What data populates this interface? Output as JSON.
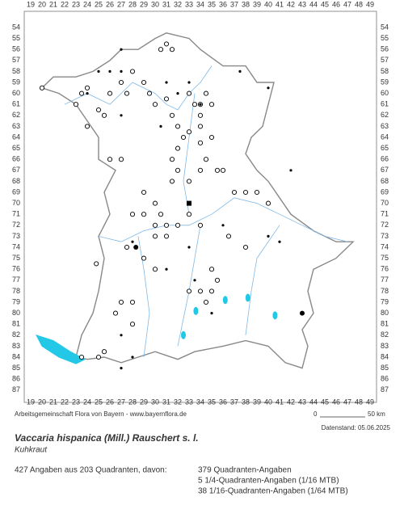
{
  "grid": {
    "columns": [
      19,
      20,
      21,
      22,
      23,
      24,
      25,
      26,
      27,
      28,
      29,
      30,
      31,
      32,
      33,
      34,
      35,
      36,
      37,
      38,
      39,
      40,
      41,
      42,
      43,
      44,
      45,
      46,
      47,
      48,
      49
    ],
    "rows": [
      54,
      55,
      56,
      57,
      58,
      59,
      60,
      61,
      62,
      63,
      64,
      65,
      66,
      67,
      68,
      69,
      70,
      71,
      72,
      73,
      74,
      75,
      76,
      77,
      78,
      79,
      80,
      81,
      82,
      83,
      84,
      85,
      86,
      87
    ]
  },
  "footer": {
    "credit": "Arbeitsgemeinschaft Flora von Bayern - www.bayernflora.de",
    "scale_start": "0",
    "scale_end": "50 km",
    "date": "Datenstand: 05.06.2025"
  },
  "species": {
    "title": "Vaccaria hispanica (Mill.) Rauschert s. l.",
    "common_name": "Kuhkraut"
  },
  "summary": {
    "total": "427 Angaben aus 203 Quadranten, davon:",
    "lines": [
      "379 Quadranten-Angaben",
      "5 1/4-Quadranten-Angaben (1/16 MTB)",
      "38 1/16-Quadranten-Angaben (1/64 MTB)"
    ]
  }
}
